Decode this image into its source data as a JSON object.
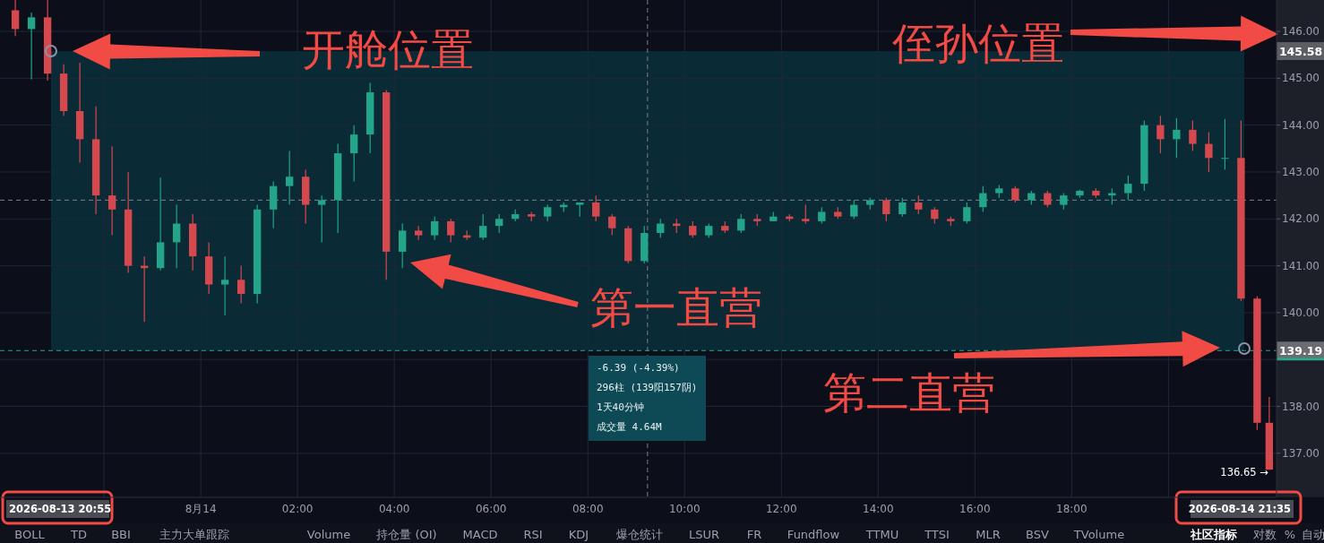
{
  "chart_data": {
    "type": "candlestick",
    "x": [
      "2026-08-13T20:10",
      "2026-08-13T20:30",
      "2026-08-13T20:50",
      "2026-08-13T21:10",
      "2026-08-13T21:30",
      "2026-08-13T21:50",
      "2026-08-13T22:10",
      "2026-08-13T22:30",
      "2026-08-13T22:50",
      "2026-08-13T23:10",
      "2026-08-13T23:30",
      "2026-08-13T23:50",
      "2026-08-14T00:10",
      "2026-08-14T00:30",
      "2026-08-14T00:50",
      "2026-08-14T01:10",
      "2026-08-14T01:30",
      "2026-08-14T01:50",
      "2026-08-14T02:10",
      "2026-08-14T02:30",
      "2026-08-14T02:50",
      "2026-08-14T03:10",
      "2026-08-14T03:30",
      "2026-08-14T03:50",
      "2026-08-14T04:10",
      "2026-08-14T04:30",
      "2026-08-14T04:50",
      "2026-08-14T05:10",
      "2026-08-14T05:30",
      "2026-08-14T05:50",
      "2026-08-14T06:10",
      "2026-08-14T06:30",
      "2026-08-14T06:50",
      "2026-08-14T07:10",
      "2026-08-14T07:30",
      "2026-08-14T07:50",
      "2026-08-14T08:10",
      "2026-08-14T08:30",
      "2026-08-14T08:50",
      "2026-08-14T09:10",
      "2026-08-14T09:30",
      "2026-08-14T09:50",
      "2026-08-14T10:10",
      "2026-08-14T10:30",
      "2026-08-14T10:50",
      "2026-08-14T11:10",
      "2026-08-14T11:30",
      "2026-08-14T11:50",
      "2026-08-14T12:10",
      "2026-08-14T12:30",
      "2026-08-14T12:50",
      "2026-08-14T13:10",
      "2026-08-14T13:30",
      "2026-08-14T13:50",
      "2026-08-14T14:10",
      "2026-08-14T14:30",
      "2026-08-14T14:50",
      "2026-08-14T15:10",
      "2026-08-14T15:30",
      "2026-08-14T15:50",
      "2026-08-14T16:10",
      "2026-08-14T16:30",
      "2026-08-14T16:50",
      "2026-08-14T17:10",
      "2026-08-14T17:30",
      "2026-08-14T17:50",
      "2026-08-14T18:10",
      "2026-08-14T18:30",
      "2026-08-14T18:50",
      "2026-08-14T19:10",
      "2026-08-14T19:30",
      "2026-08-14T19:50",
      "2026-08-14T20:10",
      "2026-08-14T20:30",
      "2026-08-14T20:50",
      "2026-08-14T21:10",
      "2026-08-14T21:30",
      "2026-08-14T21:50",
      "2026-08-14T22:05"
    ],
    "ohlc": [
      [
        146.45,
        146.7,
        145.9,
        146.05
      ],
      [
        146.05,
        146.4,
        144.98,
        146.3
      ],
      [
        146.3,
        146.67,
        144.95,
        145.1
      ],
      [
        145.1,
        145.3,
        144.2,
        144.3
      ],
      [
        144.3,
        145.33,
        143.2,
        143.7
      ],
      [
        143.7,
        144.4,
        142.1,
        142.5
      ],
      [
        142.5,
        143.55,
        141.65,
        142.2
      ],
      [
        142.2,
        143.0,
        140.85,
        141.0
      ],
      [
        141.0,
        141.2,
        139.8,
        140.95
      ],
      [
        140.95,
        142.88,
        140.9,
        141.5
      ],
      [
        141.5,
        142.3,
        140.95,
        141.9
      ],
      [
        141.9,
        142.1,
        140.9,
        141.2
      ],
      [
        141.2,
        141.5,
        140.4,
        140.6
      ],
      [
        140.6,
        141.2,
        139.94,
        140.7
      ],
      [
        140.7,
        141.0,
        140.2,
        140.4
      ],
      [
        140.4,
        142.3,
        140.2,
        142.2
      ],
      [
        142.2,
        142.8,
        141.8,
        142.7
      ],
      [
        142.7,
        143.45,
        142.3,
        142.9
      ],
      [
        142.9,
        143.05,
        141.9,
        142.3
      ],
      [
        142.3,
        142.5,
        141.5,
        142.4
      ],
      [
        142.4,
        143.6,
        141.7,
        143.4
      ],
      [
        143.4,
        144.0,
        142.8,
        143.8
      ],
      [
        143.8,
        144.9,
        143.4,
        144.7
      ],
      [
        144.7,
        144.75,
        140.7,
        141.3
      ],
      [
        141.3,
        141.9,
        140.95,
        141.75
      ],
      [
        141.75,
        141.85,
        141.55,
        141.65
      ],
      [
        141.65,
        142.05,
        141.55,
        141.95
      ],
      [
        141.95,
        142.0,
        141.5,
        141.65
      ],
      [
        141.65,
        141.75,
        141.55,
        141.6
      ],
      [
        141.6,
        142.1,
        141.55,
        141.85
      ],
      [
        141.85,
        142.1,
        141.7,
        142.0
      ],
      [
        142.0,
        142.2,
        141.95,
        142.1
      ],
      [
        142.1,
        142.15,
        141.95,
        142.05
      ],
      [
        142.05,
        142.3,
        141.95,
        142.25
      ],
      [
        142.25,
        142.35,
        142.15,
        142.3
      ],
      [
        142.3,
        142.35,
        142.05,
        142.35
      ],
      [
        142.35,
        142.5,
        141.95,
        142.05
      ],
      [
        142.05,
        142.1,
        141.65,
        141.8
      ],
      [
        141.8,
        141.85,
        141.05,
        141.1
      ],
      [
        141.1,
        141.85,
        141.05,
        141.7
      ],
      [
        141.7,
        142.0,
        141.6,
        141.9
      ],
      [
        141.9,
        142.0,
        141.7,
        141.85
      ],
      [
        141.85,
        141.95,
        141.6,
        141.65
      ],
      [
        141.65,
        141.9,
        141.6,
        141.85
      ],
      [
        141.85,
        141.95,
        141.7,
        141.75
      ],
      [
        141.75,
        142.1,
        141.7,
        142.0
      ],
      [
        142.0,
        142.1,
        141.85,
        141.95
      ],
      [
        141.95,
        142.15,
        141.95,
        142.05
      ],
      [
        142.05,
        142.1,
        141.95,
        142.0
      ],
      [
        142.0,
        142.3,
        141.9,
        141.95
      ],
      [
        141.95,
        142.25,
        141.9,
        142.15
      ],
      [
        142.15,
        142.25,
        142.0,
        142.05
      ],
      [
        142.05,
        142.4,
        142.0,
        142.3
      ],
      [
        142.3,
        142.45,
        142.2,
        142.4
      ],
      [
        142.4,
        142.45,
        141.95,
        142.1
      ],
      [
        142.1,
        142.45,
        142.05,
        142.35
      ],
      [
        142.35,
        142.5,
        142.1,
        142.2
      ],
      [
        142.2,
        142.25,
        141.9,
        142.0
      ],
      [
        142.0,
        142.05,
        141.85,
        141.95
      ],
      [
        141.95,
        142.35,
        141.9,
        142.25
      ],
      [
        142.25,
        142.7,
        142.15,
        142.55
      ],
      [
        142.55,
        142.72,
        142.45,
        142.65
      ],
      [
        142.65,
        142.7,
        142.35,
        142.4
      ],
      [
        142.4,
        142.6,
        142.3,
        142.55
      ],
      [
        142.55,
        142.6,
        142.25,
        142.3
      ],
      [
        142.3,
        142.55,
        142.2,
        142.5
      ],
      [
        142.5,
        142.62,
        142.45,
        142.6
      ],
      [
        142.6,
        142.65,
        142.45,
        142.5
      ],
      [
        142.5,
        142.65,
        142.3,
        142.55
      ],
      [
        142.55,
        142.93,
        142.4,
        142.75
      ],
      [
        142.75,
        144.1,
        142.6,
        144.0
      ],
      [
        144.0,
        144.2,
        143.4,
        143.7
      ],
      [
        143.7,
        144.15,
        143.3,
        143.9
      ],
      [
        143.9,
        144.1,
        143.45,
        143.6
      ],
      [
        143.6,
        143.85,
        143.0,
        143.3
      ],
      [
        143.3,
        144.13,
        143.05,
        143.3
      ],
      [
        143.3,
        144.1,
        140.25,
        140.3
      ],
      [
        140.3,
        140.35,
        137.5,
        137.65
      ],
      [
        137.65,
        138.2,
        136.65,
        136.65
      ]
    ],
    "xlim": [
      "2026-08-13T19:51",
      "2026-08-14T22:14"
    ],
    "ylim": [
      136.06,
      146.67
    ],
    "xticks": [
      {
        "value": "2026-08-13T22:00",
        "label": null
      },
      {
        "value": "2026-08-14T00:00",
        "label": "8月14"
      },
      {
        "value": "2026-08-14T02:00",
        "label": "02:00"
      },
      {
        "value": "2026-08-14T04:00",
        "label": "04:00"
      },
      {
        "value": "2026-08-14T06:00",
        "label": "06:00"
      },
      {
        "value": "2026-08-14T08:00",
        "label": "08:00"
      },
      {
        "value": "2026-08-14T10:00",
        "label": "10:00"
      },
      {
        "value": "2026-08-14T12:00",
        "label": "12:00"
      },
      {
        "value": "2026-08-14T14:00",
        "label": "14:00"
      },
      {
        "value": "2026-08-14T16:00",
        "label": "16:00"
      },
      {
        "value": "2026-08-14T18:00",
        "label": "18:00"
      },
      {
        "value": "2026-08-14T20:00",
        "label": null
      }
    ],
    "yticks": [
      {
        "value": 137,
        "label": "137.00"
      },
      {
        "value": 138,
        "label": "138.00"
      },
      {
        "value": 139,
        "label": null
      },
      {
        "value": 140,
        "label": "140.00"
      },
      {
        "value": 141,
        "label": "141.00"
      },
      {
        "value": 142,
        "label": "142.00"
      },
      {
        "value": 143,
        "label": "143.00"
      },
      {
        "value": 144,
        "label": "144.00"
      },
      {
        "value": 145,
        "label": "145.00"
      },
      {
        "value": 146,
        "label": "146.00"
      }
    ],
    "grid": true,
    "bands": [
      {
        "axis": "y",
        "from": 139.19,
        "to": 145.58,
        "color": "#0a2a36"
      }
    ],
    "ref_lines": [
      {
        "axis": "y",
        "value": 139.19,
        "label": "139.19",
        "color": "#26a68a",
        "line_style": "dashed"
      },
      {
        "axis": "y",
        "value": 142.4,
        "color": "#7a808a",
        "line_style": "dashed"
      },
      {
        "axis": "x",
        "value": "2026-08-14T09:14",
        "color": "#7a808a",
        "line_style": "dashed"
      }
    ],
    "annotations": [
      "开舱位置",
      "侄孙位置",
      "第一直营",
      "第二直营",
      "-6.39 (-4.39%)",
      "296柱 (139阳157阴)",
      "1天40分钟",
      "成交量 4.64M",
      "2026-08-13 20:55",
      "2026-08-14 21:35",
      "145.58",
      {
        "text": "136.65 →",
        "x": "2026-08-14T22:05",
        "y": 136.65
      },
      "BOLL",
      "TD",
      "BBI",
      "主力大单跟踪",
      "Volume",
      "持仓量 (OI)",
      "MACD",
      "RSI",
      "KDJ",
      "爆仓统计",
      "LSUR",
      "FR",
      "Fundflow",
      "TTMU",
      "TTSI",
      "MLR",
      "BSV",
      "TVolume",
      "社区指标",
      "对数",
      "%",
      "自动"
    ]
  }
}
